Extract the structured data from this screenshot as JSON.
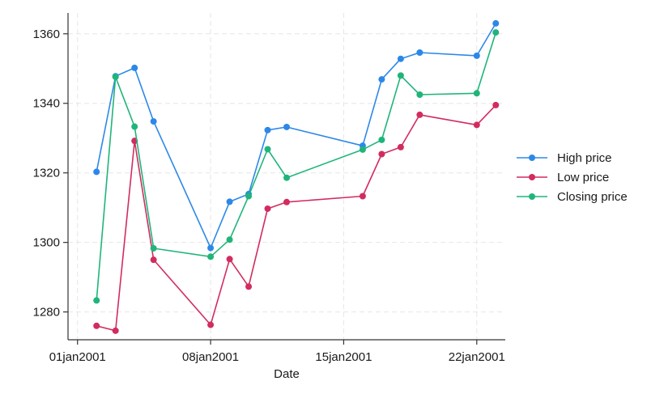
{
  "chart_data": {
    "type": "line",
    "title": "",
    "xlabel": "Date",
    "ylabel": "",
    "x_ticks": [
      "01jan2001",
      "08jan2001",
      "15jan2001",
      "22jan2001"
    ],
    "y_ticks": [
      1280,
      1300,
      1320,
      1340,
      1360
    ],
    "ylim": [
      1272,
      1366
    ],
    "grid": true,
    "legend_position": "right",
    "x": [
      "02jan2001",
      "03jan2001",
      "04jan2001",
      "05jan2001",
      "08jan2001",
      "09jan2001",
      "10jan2001",
      "11jan2001",
      "12jan2001",
      "16jan2001",
      "17jan2001",
      "18jan2001",
      "19jan2001",
      "22jan2001",
      "23jan2001"
    ],
    "series": [
      {
        "name": "High price",
        "color": "#2c88e8",
        "values": [
          1320.3,
          1347.8,
          1350.2,
          1334.8,
          1298.4,
          1311.7,
          1313.9,
          1332.3,
          1333.2,
          1327.8,
          1346.9,
          1352.8,
          1354.6,
          1353.7,
          1363.0
        ]
      },
      {
        "name": "Low price",
        "color": "#d22c5f",
        "values": [
          1276.0,
          1274.6,
          1329.2,
          1295.0,
          1276.3,
          1295.2,
          1287.3,
          1309.7,
          1311.6,
          1313.3,
          1325.4,
          1327.4,
          1336.7,
          1333.8,
          1339.5
        ]
      },
      {
        "name": "Closing price",
        "color": "#1fb57a",
        "values": [
          1283.3,
          1347.6,
          1333.3,
          1298.3,
          1295.9,
          1300.8,
          1313.3,
          1326.8,
          1318.6,
          1326.7,
          1329.5,
          1348.0,
          1342.5,
          1342.9,
          1360.4
        ]
      }
    ]
  }
}
